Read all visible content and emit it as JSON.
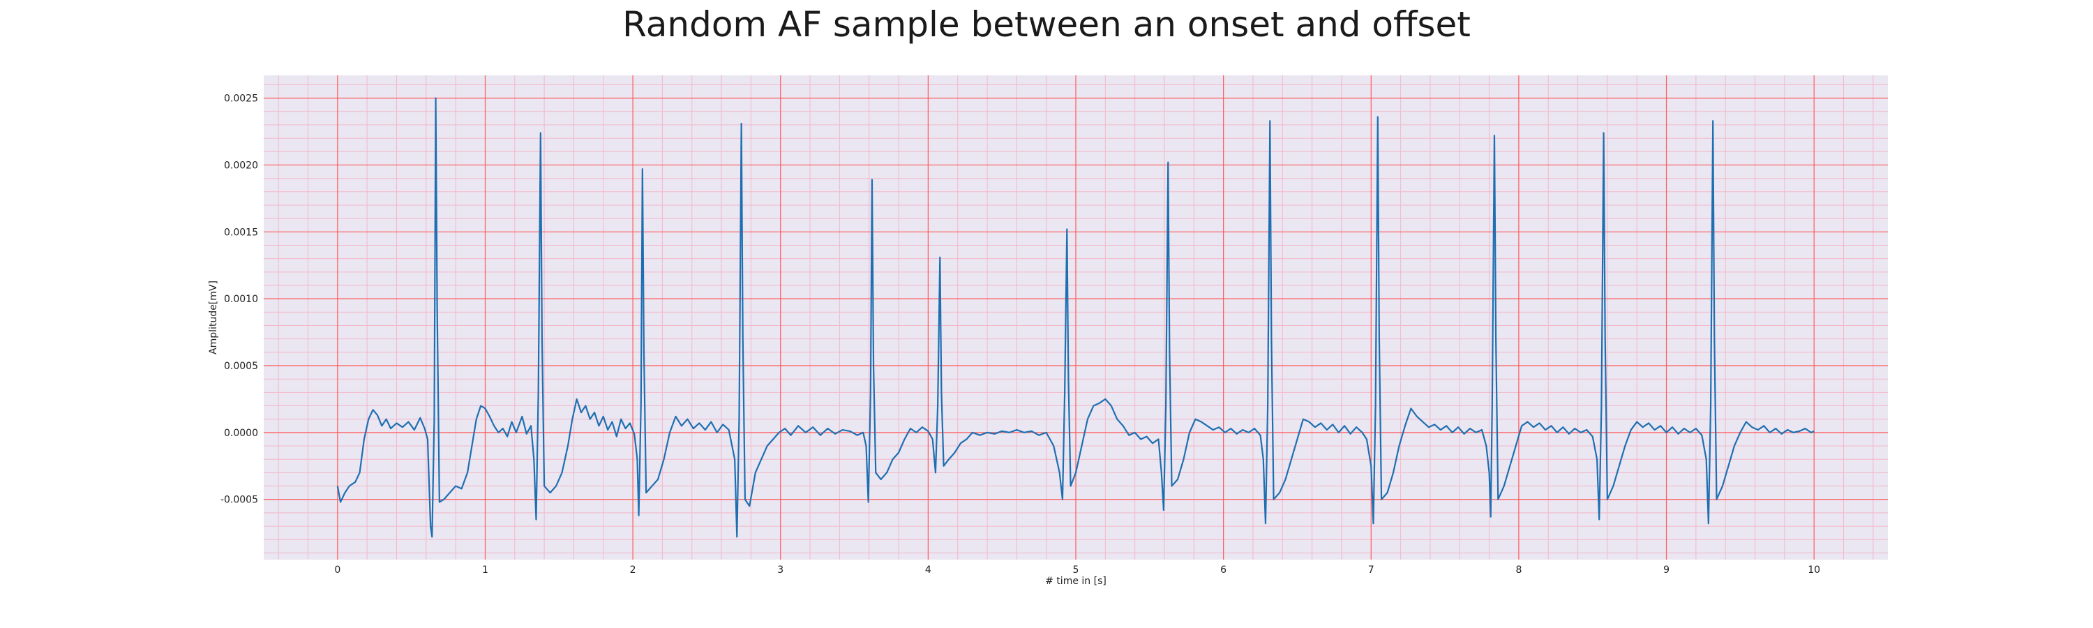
{
  "chart_data": {
    "type": "line",
    "title": "Random AF sample between an onset and offset",
    "xlabel": "# time in [s]",
    "ylabel": "Amplitude[mV]",
    "xlim": [
      -0.5,
      10.5
    ],
    "ylim": [
      -0.00095,
      0.00267
    ],
    "x_ticks": [
      0,
      1,
      2,
      3,
      4,
      5,
      6,
      7,
      8,
      9,
      10
    ],
    "x_tick_labels": [
      "0",
      "1",
      "2",
      "3",
      "4",
      "5",
      "6",
      "7",
      "8",
      "9",
      "10"
    ],
    "y_ticks": [
      -0.0005,
      0.0,
      0.0005,
      0.001,
      0.0015,
      0.002,
      0.0025
    ],
    "y_tick_labels": [
      "-0.0005",
      "0.0000",
      "0.0005",
      "0.0010",
      "0.0015",
      "0.0020",
      "0.0025"
    ],
    "grid": true,
    "background_color": "#eae6f2",
    "major_grid_color": "#ff5a5a",
    "minor_grid_color": "#f4b8c8",
    "series": [
      {
        "color": "#1f6fb0",
        "points": [
          [
            0.0,
            -0.0004
          ],
          [
            0.02,
            -0.00052
          ],
          [
            0.05,
            -0.00045
          ],
          [
            0.08,
            -0.0004
          ],
          [
            0.12,
            -0.00037
          ],
          [
            0.15,
            -0.0003
          ],
          [
            0.18,
            -5e-05
          ],
          [
            0.21,
            0.0001
          ],
          [
            0.24,
            0.00017
          ],
          [
            0.27,
            0.00013
          ],
          [
            0.3,
            5e-05
          ],
          [
            0.33,
            0.0001
          ],
          [
            0.36,
            3e-05
          ],
          [
            0.4,
            7e-05
          ],
          [
            0.44,
            4e-05
          ],
          [
            0.48,
            8e-05
          ],
          [
            0.52,
            2e-05
          ],
          [
            0.56,
            0.00011
          ],
          [
            0.59,
            3e-05
          ],
          [
            0.61,
            -5e-05
          ],
          [
            0.63,
            -0.0007
          ],
          [
            0.64,
            -0.00078
          ],
          [
            0.655,
            0.0001
          ],
          [
            0.665,
            0.0025
          ],
          [
            0.675,
            0.0009
          ],
          [
            0.69,
            -0.00052
          ],
          [
            0.72,
            -0.0005
          ],
          [
            0.76,
            -0.00045
          ],
          [
            0.8,
            -0.0004
          ],
          [
            0.84,
            -0.00042
          ],
          [
            0.88,
            -0.0003
          ],
          [
            0.91,
            -0.0001
          ],
          [
            0.94,
            0.0001
          ],
          [
            0.97,
            0.0002
          ],
          [
            1.0,
            0.00018
          ],
          [
            1.03,
            0.00012
          ],
          [
            1.06,
            5e-05
          ],
          [
            1.09,
            0.0
          ],
          [
            1.12,
            3e-05
          ],
          [
            1.15,
            -3e-05
          ],
          [
            1.18,
            8e-05
          ],
          [
            1.21,
            0.0
          ],
          [
            1.25,
            0.00012
          ],
          [
            1.28,
            -1e-05
          ],
          [
            1.31,
            5e-05
          ],
          [
            1.33,
            -0.0002
          ],
          [
            1.345,
            -0.00065
          ],
          [
            1.36,
            0.0003
          ],
          [
            1.375,
            0.00224
          ],
          [
            1.385,
            0.0007
          ],
          [
            1.4,
            -0.0004
          ],
          [
            1.44,
            -0.00045
          ],
          [
            1.48,
            -0.0004
          ],
          [
            1.52,
            -0.0003
          ],
          [
            1.56,
            -0.0001
          ],
          [
            1.59,
            0.0001
          ],
          [
            1.62,
            0.00025
          ],
          [
            1.65,
            0.00015
          ],
          [
            1.68,
            0.0002
          ],
          [
            1.71,
            0.0001
          ],
          [
            1.74,
            0.00015
          ],
          [
            1.77,
            5e-05
          ],
          [
            1.8,
            0.00012
          ],
          [
            1.83,
            2e-05
          ],
          [
            1.86,
            8e-05
          ],
          [
            1.89,
            -3e-05
          ],
          [
            1.92,
            0.0001
          ],
          [
            1.95,
            3e-05
          ],
          [
            1.98,
            7e-05
          ],
          [
            2.01,
            -1e-05
          ],
          [
            2.03,
            -0.0002
          ],
          [
            2.04,
            -0.00062
          ],
          [
            2.055,
            0.0002
          ],
          [
            2.065,
            0.00197
          ],
          [
            2.075,
            0.0006
          ],
          [
            2.09,
            -0.00045
          ],
          [
            2.13,
            -0.0004
          ],
          [
            2.17,
            -0.00035
          ],
          [
            2.21,
            -0.0002
          ],
          [
            2.25,
            0.0
          ],
          [
            2.29,
            0.00012
          ],
          [
            2.33,
            5e-05
          ],
          [
            2.37,
            0.0001
          ],
          [
            2.41,
            3e-05
          ],
          [
            2.45,
            7e-05
          ],
          [
            2.49,
            2e-05
          ],
          [
            2.53,
            8e-05
          ],
          [
            2.57,
            0.0
          ],
          [
            2.61,
            6e-05
          ],
          [
            2.65,
            2e-05
          ],
          [
            2.69,
            -0.0002
          ],
          [
            2.705,
            -0.00078
          ],
          [
            2.72,
            0.0001
          ],
          [
            2.735,
            0.00231
          ],
          [
            2.745,
            0.0007
          ],
          [
            2.76,
            -0.0005
          ],
          [
            2.79,
            -0.00055
          ],
          [
            2.83,
            -0.0003
          ],
          [
            2.87,
            -0.0002
          ],
          [
            2.91,
            -0.0001
          ],
          [
            2.95,
            -5e-05
          ],
          [
            2.99,
            0.0
          ],
          [
            3.03,
            3e-05
          ],
          [
            3.07,
            -2e-05
          ],
          [
            3.12,
            5e-05
          ],
          [
            3.17,
            0.0
          ],
          [
            3.22,
            4e-05
          ],
          [
            3.27,
            -2e-05
          ],
          [
            3.32,
            3e-05
          ],
          [
            3.37,
            -1e-05
          ],
          [
            3.42,
            2e-05
          ],
          [
            3.47,
            1e-05
          ],
          [
            3.52,
            -2e-05
          ],
          [
            3.56,
            0.0
          ],
          [
            3.58,
            -0.0001
          ],
          [
            3.595,
            -0.00052
          ],
          [
            3.61,
            0.0003
          ],
          [
            3.62,
            0.00189
          ],
          [
            3.63,
            0.0005
          ],
          [
            3.645,
            -0.0003
          ],
          [
            3.68,
            -0.00035
          ],
          [
            3.72,
            -0.0003
          ],
          [
            3.76,
            -0.0002
          ],
          [
            3.8,
            -0.00015
          ],
          [
            3.84,
            -5e-05
          ],
          [
            3.88,
            3e-05
          ],
          [
            3.92,
            0.0
          ],
          [
            3.96,
            4e-05
          ],
          [
            4.0,
            1e-05
          ],
          [
            4.03,
            -5e-05
          ],
          [
            4.05,
            -0.0003
          ],
          [
            4.065,
            0.0002
          ],
          [
            4.08,
            0.00131
          ],
          [
            4.09,
            0.0003
          ],
          [
            4.105,
            -0.00025
          ],
          [
            4.14,
            -0.0002
          ],
          [
            4.18,
            -0.00015
          ],
          [
            4.22,
            -8e-05
          ],
          [
            4.26,
            -5e-05
          ],
          [
            4.3,
            0.0
          ],
          [
            4.35,
            -2e-05
          ],
          [
            4.4,
            0.0
          ],
          [
            4.45,
            -1e-05
          ],
          [
            4.5,
            1e-05
          ],
          [
            4.55,
            0.0
          ],
          [
            4.6,
            2e-05
          ],
          [
            4.65,
            0.0
          ],
          [
            4.7,
            1e-05
          ],
          [
            4.75,
            -2e-05
          ],
          [
            4.8,
            0.0
          ],
          [
            4.85,
            -0.0001
          ],
          [
            4.89,
            -0.0003
          ],
          [
            4.91,
            -0.0005
          ],
          [
            4.925,
            0.0003
          ],
          [
            4.94,
            0.00152
          ],
          [
            4.95,
            0.0004
          ],
          [
            4.965,
            -0.0004
          ],
          [
            5.0,
            -0.0003
          ],
          [
            5.04,
            -0.0001
          ],
          [
            5.08,
            0.0001
          ],
          [
            5.12,
            0.0002
          ],
          [
            5.16,
            0.00022
          ],
          [
            5.2,
            0.00025
          ],
          [
            5.24,
            0.0002
          ],
          [
            5.28,
            0.0001
          ],
          [
            5.32,
            5e-05
          ],
          [
            5.36,
            -2e-05
          ],
          [
            5.4,
            0.0
          ],
          [
            5.44,
            -5e-05
          ],
          [
            5.48,
            -3e-05
          ],
          [
            5.52,
            -8e-05
          ],
          [
            5.56,
            -5e-05
          ],
          [
            5.58,
            -0.0003
          ],
          [
            5.595,
            -0.00058
          ],
          [
            5.61,
            0.0002
          ],
          [
            5.625,
            0.00202
          ],
          [
            5.635,
            0.0006
          ],
          [
            5.65,
            -0.0004
          ],
          [
            5.69,
            -0.00035
          ],
          [
            5.73,
            -0.0002
          ],
          [
            5.77,
            0.0
          ],
          [
            5.81,
            0.0001
          ],
          [
            5.85,
            8e-05
          ],
          [
            5.89,
            5e-05
          ],
          [
            5.93,
            2e-05
          ],
          [
            5.97,
            4e-05
          ],
          [
            6.01,
            0.0
          ],
          [
            6.05,
            3e-05
          ],
          [
            6.09,
            -1e-05
          ],
          [
            6.13,
            2e-05
          ],
          [
            6.17,
            0.0
          ],
          [
            6.21,
            3e-05
          ],
          [
            6.25,
            -2e-05
          ],
          [
            6.27,
            -0.0002
          ],
          [
            6.285,
            -0.00068
          ],
          [
            6.3,
            0.0002
          ],
          [
            6.315,
            0.00233
          ],
          [
            6.325,
            0.0007
          ],
          [
            6.34,
            -0.0005
          ],
          [
            6.38,
            -0.00045
          ],
          [
            6.42,
            -0.00035
          ],
          [
            6.46,
            -0.0002
          ],
          [
            6.5,
            -5e-05
          ],
          [
            6.54,
            0.0001
          ],
          [
            6.58,
            8e-05
          ],
          [
            6.62,
            4e-05
          ],
          [
            6.66,
            7e-05
          ],
          [
            6.7,
            2e-05
          ],
          [
            6.74,
            6e-05
          ],
          [
            6.78,
            0.0
          ],
          [
            6.82,
            5e-05
          ],
          [
            6.86,
            -1e-05
          ],
          [
            6.9,
            4e-05
          ],
          [
            6.94,
            0.0
          ],
          [
            6.97,
            -5e-05
          ],
          [
            7.0,
            -0.00025
          ],
          [
            7.015,
            -0.00068
          ],
          [
            7.03,
            0.0002
          ],
          [
            7.045,
            0.00236
          ],
          [
            7.055,
            0.0007
          ],
          [
            7.07,
            -0.0005
          ],
          [
            7.11,
            -0.00045
          ],
          [
            7.15,
            -0.0003
          ],
          [
            7.19,
            -0.0001
          ],
          [
            7.23,
            5e-05
          ],
          [
            7.27,
            0.00018
          ],
          [
            7.31,
            0.00012
          ],
          [
            7.35,
            8e-05
          ],
          [
            7.39,
            4e-05
          ],
          [
            7.43,
            6e-05
          ],
          [
            7.47,
            2e-05
          ],
          [
            7.51,
            5e-05
          ],
          [
            7.55,
            0.0
          ],
          [
            7.59,
            4e-05
          ],
          [
            7.63,
            -1e-05
          ],
          [
            7.67,
            3e-05
          ],
          [
            7.71,
            0.0
          ],
          [
            7.75,
            2e-05
          ],
          [
            7.78,
            -0.0001
          ],
          [
            7.8,
            -0.0003
          ],
          [
            7.81,
            -0.00063
          ],
          [
            7.82,
            0.0002
          ],
          [
            7.835,
            0.00222
          ],
          [
            7.845,
            0.0007
          ],
          [
            7.86,
            -0.0005
          ],
          [
            7.9,
            -0.0004
          ],
          [
            7.94,
            -0.00025
          ],
          [
            7.98,
            -0.0001
          ],
          [
            8.02,
            5e-05
          ],
          [
            8.06,
            8e-05
          ],
          [
            8.1,
            4e-05
          ],
          [
            8.14,
            7e-05
          ],
          [
            8.18,
            2e-05
          ],
          [
            8.22,
            5e-05
          ],
          [
            8.26,
            0.0
          ],
          [
            8.3,
            4e-05
          ],
          [
            8.34,
            -1e-05
          ],
          [
            8.38,
            3e-05
          ],
          [
            8.42,
            0.0
          ],
          [
            8.46,
            2e-05
          ],
          [
            8.5,
            -3e-05
          ],
          [
            8.53,
            -0.0002
          ],
          [
            8.545,
            -0.00065
          ],
          [
            8.56,
            0.0002
          ],
          [
            8.575,
            0.00224
          ],
          [
            8.585,
            0.0007
          ],
          [
            8.6,
            -0.0005
          ],
          [
            8.64,
            -0.0004
          ],
          [
            8.68,
            -0.00025
          ],
          [
            8.72,
            -0.0001
          ],
          [
            8.76,
            2e-05
          ],
          [
            8.8,
            8e-05
          ],
          [
            8.84,
            4e-05
          ],
          [
            8.88,
            7e-05
          ],
          [
            8.92,
            2e-05
          ],
          [
            8.96,
            5e-05
          ],
          [
            9.0,
            0.0
          ],
          [
            9.04,
            4e-05
          ],
          [
            9.08,
            -1e-05
          ],
          [
            9.12,
            3e-05
          ],
          [
            9.16,
            0.0
          ],
          [
            9.2,
            3e-05
          ],
          [
            9.24,
            -2e-05
          ],
          [
            9.27,
            -0.0002
          ],
          [
            9.285,
            -0.00068
          ],
          [
            9.3,
            0.0002
          ],
          [
            9.315,
            0.00233
          ],
          [
            9.325,
            0.0007
          ],
          [
            9.34,
            -0.0005
          ],
          [
            9.38,
            -0.0004
          ],
          [
            9.42,
            -0.00025
          ],
          [
            9.46,
            -0.0001
          ],
          [
            9.5,
            0.0
          ],
          [
            9.54,
            8e-05
          ],
          [
            9.58,
            4e-05
          ],
          [
            9.62,
            2e-05
          ],
          [
            9.66,
            5e-05
          ],
          [
            9.7,
            0.0
          ],
          [
            9.74,
            3e-05
          ],
          [
            9.78,
            -1e-05
          ],
          [
            9.82,
            2e-05
          ],
          [
            9.86,
            0.0
          ],
          [
            9.9,
            1e-05
          ],
          [
            9.94,
            3e-05
          ],
          [
            9.98,
            0.0
          ],
          [
            10.0,
            1e-05
          ]
        ]
      }
    ]
  }
}
